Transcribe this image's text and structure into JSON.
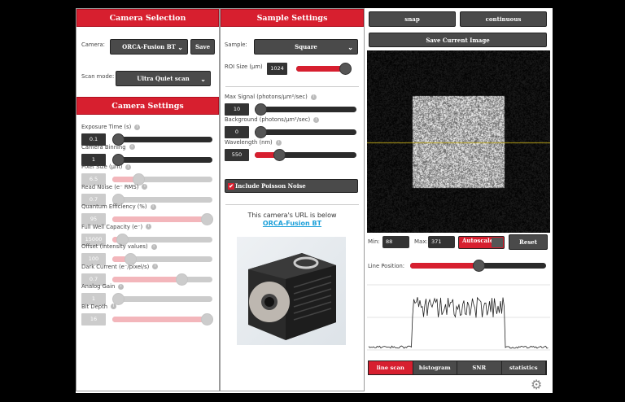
{
  "camera_selection": {
    "title": "Camera Selection",
    "camera_label": "Camera:",
    "camera_value": "ORCA-Fusion BT",
    "save_label": "Save",
    "scan_label": "Scan mode:",
    "scan_value": "Ultra Quiet scan"
  },
  "camera_settings": {
    "title": "Camera Settings",
    "rows": [
      {
        "label": "Exposure Time (s)",
        "value": "0.1",
        "level": 0,
        "disabled": false
      },
      {
        "label": "Camera Binning",
        "value": "1",
        "level": 0,
        "disabled": false
      },
      {
        "label": "Pixel Size (µm)",
        "value": "6.5",
        "level": 0.26,
        "disabled": true
      },
      {
        "label": "Read Noise (e⁻ RMS)",
        "value": "0.7",
        "level": 0,
        "disabled": true
      },
      {
        "label": "Quantum Efficiency (%)",
        "value": "95",
        "level": 1,
        "disabled": true
      },
      {
        "label": "Full Well Capacity (e⁻)",
        "value": "15000",
        "level": 0.1,
        "disabled": true
      },
      {
        "label": "Offset (intensity values)",
        "value": "100",
        "level": 0.18,
        "disabled": true
      },
      {
        "label": "Dark Current (e⁻/pixel/s)",
        "value": "0.7",
        "level": 0.69,
        "disabled": true
      },
      {
        "label": "Analog Gain",
        "value": "1",
        "level": 0,
        "disabled": true
      },
      {
        "label": "Bit Depth",
        "value": "16",
        "level": 1,
        "disabled": true
      }
    ]
  },
  "sample_settings": {
    "title": "Sample Settings",
    "sample_label": "Sample:",
    "sample_value": "Square",
    "roi_label": "ROI Size (µm)",
    "roi_value": "1024",
    "roi_level": 1,
    "rows": [
      {
        "label": "Max Signal (photons/µm²/sec)",
        "value": "10",
        "level": 0,
        "disabled": false
      },
      {
        "label": "Background (photons/µm²/sec)",
        "value": "0",
        "level": 0,
        "disabled": false
      },
      {
        "label": "Wavelength (nm)",
        "value": "550",
        "level": 0.24,
        "disabled": false
      }
    ],
    "poisson_label": "Include Poisson Noise",
    "poisson_checked": true,
    "url_text": "This camera's URL is below",
    "url_link": "ORCA-Fusion BT"
  },
  "viewer": {
    "snap": "snap",
    "continuous": "continuous",
    "save_image": "Save Current Image",
    "min_label": "Min:",
    "min_value": "88",
    "max_label": "Max:",
    "max_value": "371",
    "autoscale": "Autoscale",
    "reset": "Reset",
    "line_position_label": "Line Position:",
    "line_position_level": 0.5
  },
  "tabs": [
    {
      "label": "line scan",
      "active": true
    },
    {
      "label": "histogram",
      "active": false
    },
    {
      "label": "SNR",
      "active": false
    },
    {
      "label": "statistics",
      "active": false
    }
  ],
  "colors": {
    "accent": "#d71f2f",
    "button": "#4a4a4a",
    "link": "#1a9fd9"
  }
}
